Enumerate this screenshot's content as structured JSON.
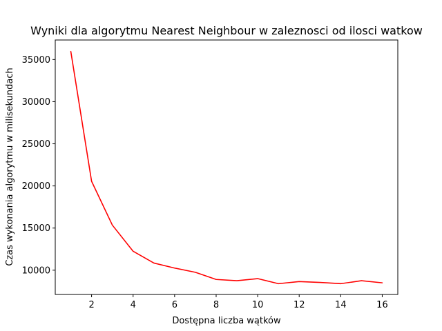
{
  "chart_data": {
    "type": "line",
    "title": "Wyniki dla algorytmu Nearest Neighbour w zaleznosci od ilosci watkow",
    "xlabel": "Dostępna liczba wątków",
    "ylabel": "Czas wykonania algorytmu w milisekundach",
    "x": [
      1,
      2,
      3,
      4,
      5,
      6,
      7,
      8,
      9,
      10,
      11,
      12,
      13,
      14,
      15,
      16
    ],
    "series": [
      {
        "color": "#ff0000",
        "values": [
          35950,
          20550,
          15350,
          12250,
          10850,
          10250,
          9750,
          8900,
          8750,
          9000,
          8400,
          8650,
          8550,
          8400,
          8750,
          8500
        ]
      }
    ],
    "xlim": [
      0.25,
      16.75
    ],
    "ylim": [
      7120,
      37320
    ],
    "xticks": [
      2,
      4,
      6,
      8,
      10,
      12,
      14,
      16
    ],
    "yticks": [
      10000,
      15000,
      20000,
      25000,
      30000,
      35000
    ],
    "grid": false,
    "legend": "none"
  }
}
